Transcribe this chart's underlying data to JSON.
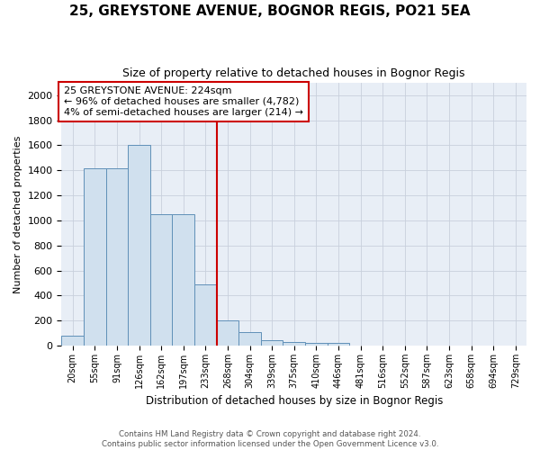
{
  "title1": "25, GREYSTONE AVENUE, BOGNOR REGIS, PO21 5EA",
  "title2": "Size of property relative to detached houses in Bognor Regis",
  "xlabel": "Distribution of detached houses by size in Bognor Regis",
  "ylabel": "Number of detached properties",
  "bin_labels": [
    "20sqm",
    "55sqm",
    "91sqm",
    "126sqm",
    "162sqm",
    "197sqm",
    "233sqm",
    "268sqm",
    "304sqm",
    "339sqm",
    "375sqm",
    "410sqm",
    "446sqm",
    "481sqm",
    "516sqm",
    "552sqm",
    "587sqm",
    "623sqm",
    "658sqm",
    "694sqm",
    "729sqm"
  ],
  "bar_values": [
    80,
    1420,
    1420,
    1600,
    1050,
    1050,
    490,
    200,
    105,
    40,
    30,
    20,
    20,
    0,
    0,
    0,
    0,
    0,
    0,
    0,
    0
  ],
  "bar_color": "#d0e0ee",
  "bar_edge_color": "#6090b8",
  "vline_x": 6.5,
  "vline_color": "#cc0000",
  "annotation_title": "25 GREYSTONE AVENUE: 224sqm",
  "annotation_line1": "← 96% of detached houses are smaller (4,782)",
  "annotation_line2": "4% of semi-detached houses are larger (214) →",
  "annotation_box_color": "#ffffff",
  "annotation_border_color": "#cc0000",
  "ylim": [
    0,
    2100
  ],
  "yticks": [
    0,
    200,
    400,
    600,
    800,
    1000,
    1200,
    1400,
    1600,
    1800,
    2000
  ],
  "footer1": "Contains HM Land Registry data © Crown copyright and database right 2024.",
  "footer2": "Contains public sector information licensed under the Open Government Licence v3.0.",
  "fig_bg_color": "#ffffff",
  "plot_bg_color": "#e8eef6",
  "grid_color": "#c8d0dc",
  "title1_fontsize": 11,
  "title2_fontsize": 9
}
